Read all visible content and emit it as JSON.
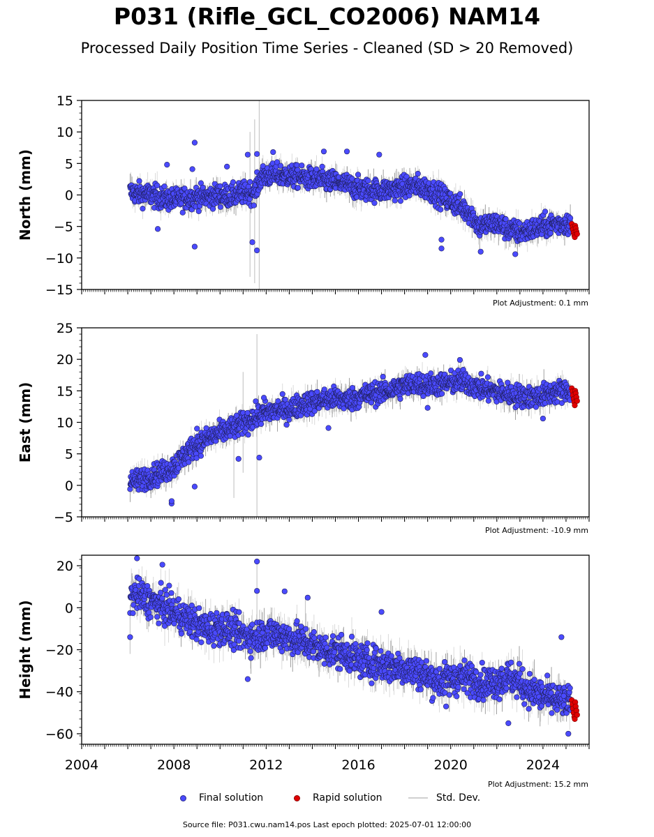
{
  "title": "P031 (Rifle_GCL_CO2006) NAM14",
  "subtitle": "Processed Daily Position Time Series - Cleaned (SD > 20 Removed)",
  "legend": {
    "final": "Final solution",
    "rapid": "Rapid solution",
    "std": "Std. Dev."
  },
  "footer": "Source file: P031.cwu.nam14.pos  Last epoch plotted: 2025-07-01 12:00:00",
  "colors": {
    "final": "#4a4aff",
    "rapid": "#e00000",
    "std": "#b0b0b0"
  },
  "chart_data": [
    {
      "type": "scatter",
      "ylabel": "North (mm)",
      "adjustment": "Plot Adjustment: 0.1 mm",
      "xlim": [
        2004,
        2026
      ],
      "ylim": [
        -15,
        15
      ],
      "yticks": [
        -15,
        -10,
        -5,
        0,
        5,
        10,
        15
      ],
      "ytick_labels": [
        "−15",
        "−10",
        "−5",
        "0",
        "5",
        "10",
        "15"
      ],
      "show_xticklabels": false,
      "x": [
        2006.1,
        2006.5,
        2007.0,
        2007.5,
        2008.0,
        2008.5,
        2009.0,
        2009.5,
        2010.0,
        2010.5,
        2011.0,
        2011.5,
        2011.8,
        2012.5,
        2013.0,
        2013.5,
        2014.0,
        2014.5,
        2015.0,
        2015.5,
        2016.0,
        2016.5,
        2017.0,
        2017.5,
        2018.0,
        2018.5,
        2019.0,
        2019.5,
        2020.0,
        2020.5,
        2020.9,
        2021.2,
        2021.6,
        2022.0,
        2022.5,
        2023.0,
        2023.5,
        2024.0,
        2024.5,
        2025.0
      ],
      "y": [
        0.5,
        0.2,
        0.0,
        -0.5,
        -0.8,
        -0.5,
        -0.3,
        -0.3,
        0.0,
        -0.2,
        0.3,
        0.5,
        3.0,
        3.2,
        3.0,
        2.8,
        2.5,
        2.3,
        2.0,
        1.6,
        1.0,
        0.8,
        0.7,
        0.9,
        1.2,
        1.5,
        1.0,
        0.0,
        -1.0,
        -2.0,
        -3.0,
        -5.0,
        -4.7,
        -4.5,
        -5.5,
        -6.0,
        -5.5,
        -5.0,
        -4.6,
        -4.5
      ],
      "spread": 1.6,
      "rapid_x": [
        2025.25,
        2025.28,
        2025.3,
        2025.33,
        2025.36,
        2025.38,
        2025.4,
        2025.42,
        2025.45,
        2025.48
      ],
      "rapid_y": [
        -4.6,
        -5.1,
        -5.5,
        -6.0,
        -6.4,
        -6.7,
        -4.9,
        -5.3,
        -5.8,
        -6.2
      ],
      "outliers": [
        [
          2008.9,
          8.3
        ],
        [
          2008.8,
          4.1
        ],
        [
          2008.9,
          -8.2
        ],
        [
          2011.6,
          -8.8
        ],
        [
          2011.4,
          -7.5
        ],
        [
          2011.6,
          6.5
        ],
        [
          2011.2,
          6.4
        ],
        [
          2012.3,
          6.8
        ],
        [
          2014.5,
          6.9
        ],
        [
          2015.5,
          6.9
        ],
        [
          2016.9,
          6.4
        ],
        [
          2019.6,
          -8.5
        ],
        [
          2019.6,
          -7.1
        ],
        [
          2021.3,
          -9.0
        ],
        [
          2022.8,
          -9.4
        ],
        [
          2010.3,
          4.5
        ],
        [
          2007.7,
          4.8
        ],
        [
          2007.3,
          -5.4
        ]
      ],
      "errbar_spikes": [
        [
          2011.3,
          -13,
          10
        ],
        [
          2011.7,
          -15,
          15
        ],
        [
          2011.5,
          -14,
          12
        ]
      ]
    },
    {
      "type": "scatter",
      "ylabel": "East (mm)",
      "adjustment": "Plot Adjustment: -10.9 mm",
      "xlim": [
        2004,
        2026
      ],
      "ylim": [
        -5,
        25
      ],
      "yticks": [
        -5,
        0,
        5,
        10,
        15,
        20,
        25
      ],
      "ytick_labels": [
        "−5",
        "0",
        "5",
        "10",
        "15",
        "20",
        "25"
      ],
      "show_xticklabels": false,
      "x": [
        2006.1,
        2006.5,
        2007.0,
        2007.5,
        2008.0,
        2008.5,
        2009.0,
        2009.5,
        2010.0,
        2010.5,
        2011.0,
        2011.5,
        2012.0,
        2012.5,
        2013.0,
        2013.5,
        2014.0,
        2014.5,
        2015.0,
        2015.5,
        2016.0,
        2016.5,
        2017.0,
        2017.5,
        2018.0,
        2018.5,
        2019.0,
        2019.5,
        2020.0,
        2020.5,
        2021.0,
        2021.5,
        2022.0,
        2022.5,
        2023.0,
        2023.5,
        2024.0,
        2024.5,
        2025.0
      ],
      "y": [
        0.5,
        0.8,
        1.5,
        2.0,
        3.0,
        5.0,
        6.5,
        7.5,
        8.3,
        9.0,
        9.8,
        10.8,
        11.5,
        12.0,
        12.0,
        12.8,
        13.2,
        13.6,
        13.8,
        13.5,
        14.0,
        14.5,
        14.8,
        15.2,
        15.8,
        16.2,
        16.0,
        16.0,
        16.3,
        16.5,
        15.8,
        15.2,
        14.8,
        14.5,
        14.2,
        14.0,
        14.3,
        14.8,
        15.0
      ],
      "spread": 1.6,
      "rapid_x": [
        2025.25,
        2025.28,
        2025.3,
        2025.33,
        2025.36,
        2025.38,
        2025.4,
        2025.42,
        2025.45,
        2025.48
      ],
      "rapid_y": [
        15.4,
        14.9,
        14.3,
        13.7,
        13.2,
        12.7,
        15.0,
        14.6,
        14.0,
        13.4
      ],
      "outliers": [
        [
          2018.9,
          20.7
        ],
        [
          2020.4,
          19.9
        ],
        [
          2007.9,
          -2.9
        ],
        [
          2007.9,
          -2.5
        ],
        [
          2008.9,
          -0.2
        ],
        [
          2011.7,
          4.4
        ],
        [
          2010.8,
          4.2
        ],
        [
          2009.0,
          9.0
        ],
        [
          2014.7,
          9.1
        ],
        [
          2019.0,
          12.3
        ],
        [
          2024.0,
          10.6
        ],
        [
          2011.9,
          13.9
        ]
      ],
      "errbar_spikes": [
        [
          2011.6,
          -5,
          24
        ],
        [
          2011.0,
          2,
          18
        ],
        [
          2010.6,
          -2,
          11
        ]
      ]
    },
    {
      "type": "scatter",
      "ylabel": "Height (mm)",
      "adjustment": "Plot Adjustment: 15.2 mm",
      "xlim": [
        2004,
        2026
      ],
      "ylim": [
        -65,
        25
      ],
      "yticks": [
        -60,
        -40,
        -20,
        0,
        20
      ],
      "ytick_labels": [
        "−60",
        "−40",
        "−20",
        "0",
        "20"
      ],
      "show_xticklabels": true,
      "xticks": [
        2004,
        2008,
        2012,
        2016,
        2020,
        2024
      ],
      "xtick_labels": [
        "2004",
        "2008",
        "2012",
        "2016",
        "2020",
        "2024"
      ],
      "x": [
        2006.1,
        2006.4,
        2006.8,
        2007.2,
        2007.6,
        2008.0,
        2008.5,
        2009.0,
        2009.5,
        2010.0,
        2010.5,
        2011.0,
        2011.5,
        2012.0,
        2012.5,
        2013.0,
        2013.5,
        2014.0,
        2014.5,
        2015.0,
        2015.5,
        2016.0,
        2016.5,
        2017.0,
        2017.5,
        2018.0,
        2018.5,
        2019.0,
        2019.5,
        2020.0,
        2020.5,
        2021.0,
        2021.5,
        2022.0,
        2022.5,
        2023.0,
        2023.5,
        2024.0,
        2024.5,
        2025.0
      ],
      "y": [
        5,
        6,
        4,
        2,
        0,
        -2,
        -5,
        -8,
        -10,
        -9,
        -11,
        -13,
        -14,
        -12,
        -13,
        -14,
        -16,
        -18,
        -20,
        -21,
        -22,
        -25,
        -26,
        -27,
        -28,
        -29,
        -30,
        -33,
        -35,
        -34,
        -33,
        -34,
        -36,
        -35,
        -33,
        -36,
        -40,
        -42,
        -44,
        -45
      ],
      "spread": 7,
      "rapid_x": [
        2025.25,
        2025.28,
        2025.3,
        2025.33,
        2025.36,
        2025.38,
        2025.4,
        2025.42,
        2025.45,
        2025.48
      ],
      "rapid_y": [
        -44,
        -46,
        -48,
        -50,
        -52,
        -53,
        -45,
        -47,
        -49,
        -51
      ],
      "outliers": [
        [
          2006.4,
          23.5
        ],
        [
          2007.5,
          20.5
        ],
        [
          2011.6,
          22.0
        ],
        [
          2011.6,
          8.0
        ],
        [
          2012.8,
          7.8
        ],
        [
          2013.8,
          4.8
        ],
        [
          2017.0,
          -2.0
        ],
        [
          2006.1,
          -14
        ],
        [
          2011.2,
          -34
        ],
        [
          2019.8,
          -47
        ],
        [
          2024.8,
          -14
        ],
        [
          2025.1,
          -60
        ],
        [
          2022.5,
          -55
        ],
        [
          2024.9,
          -42
        ]
      ],
      "errbar_spikes": [
        [
          2011.6,
          -22,
          22
        ],
        [
          2013.7,
          -16,
          5
        ],
        [
          2006.1,
          -22,
          0
        ]
      ]
    }
  ]
}
